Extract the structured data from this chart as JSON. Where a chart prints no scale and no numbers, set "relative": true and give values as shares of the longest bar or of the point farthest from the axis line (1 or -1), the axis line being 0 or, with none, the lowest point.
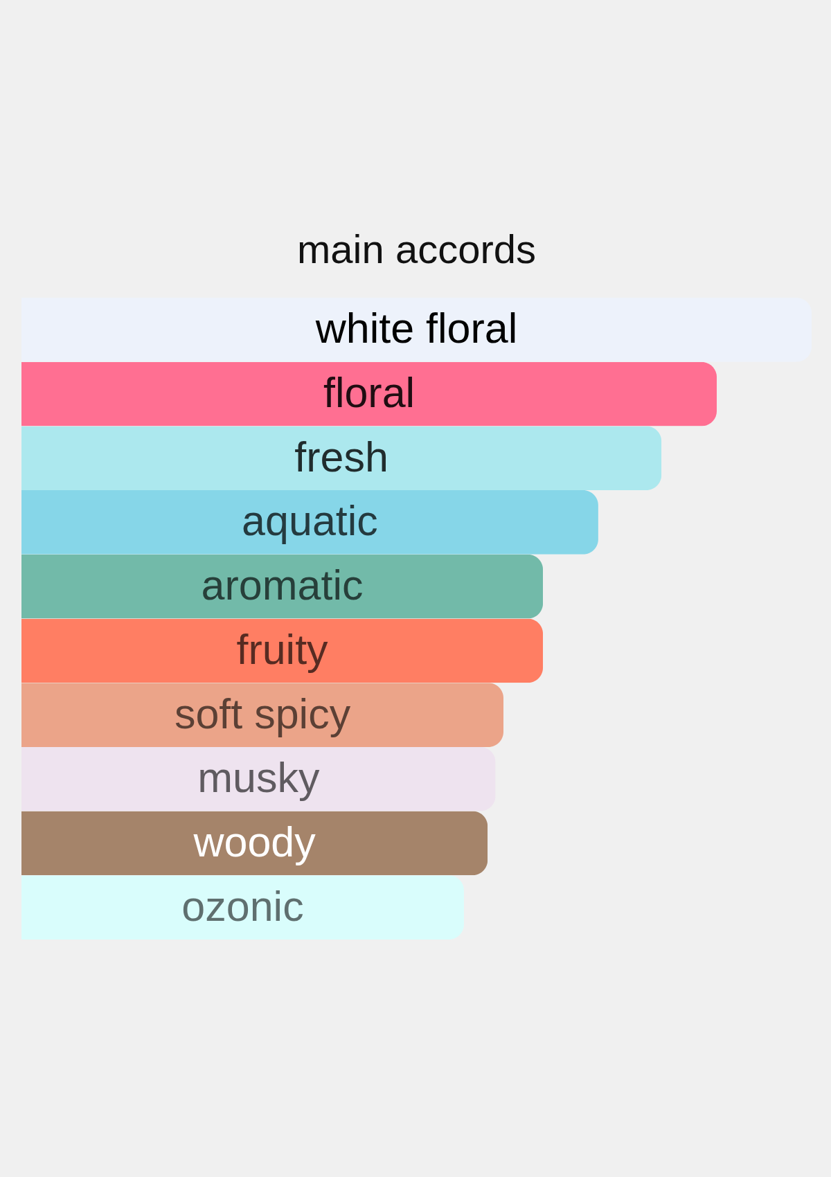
{
  "chart_data": {
    "type": "bar",
    "orientation": "horizontal",
    "relative": true,
    "title": "main accords",
    "categories": [
      "white floral",
      "floral",
      "fresh",
      "aquatic",
      "aromatic",
      "fruity",
      "soft spicy",
      "musky",
      "woody",
      "ozonic"
    ],
    "values": [
      1,
      0.88,
      0.81,
      0.73,
      0.66,
      0.66,
      0.61,
      0.6,
      0.59,
      0.56
    ],
    "colors": [
      "#edf2fb",
      "#ff6f92",
      "#ace8ee",
      "#86d6e8",
      "#72baa9",
      "#ff7e63",
      "#eba489",
      "#eee3ef",
      "#a5846a",
      "#d9fdfc"
    ]
  }
}
